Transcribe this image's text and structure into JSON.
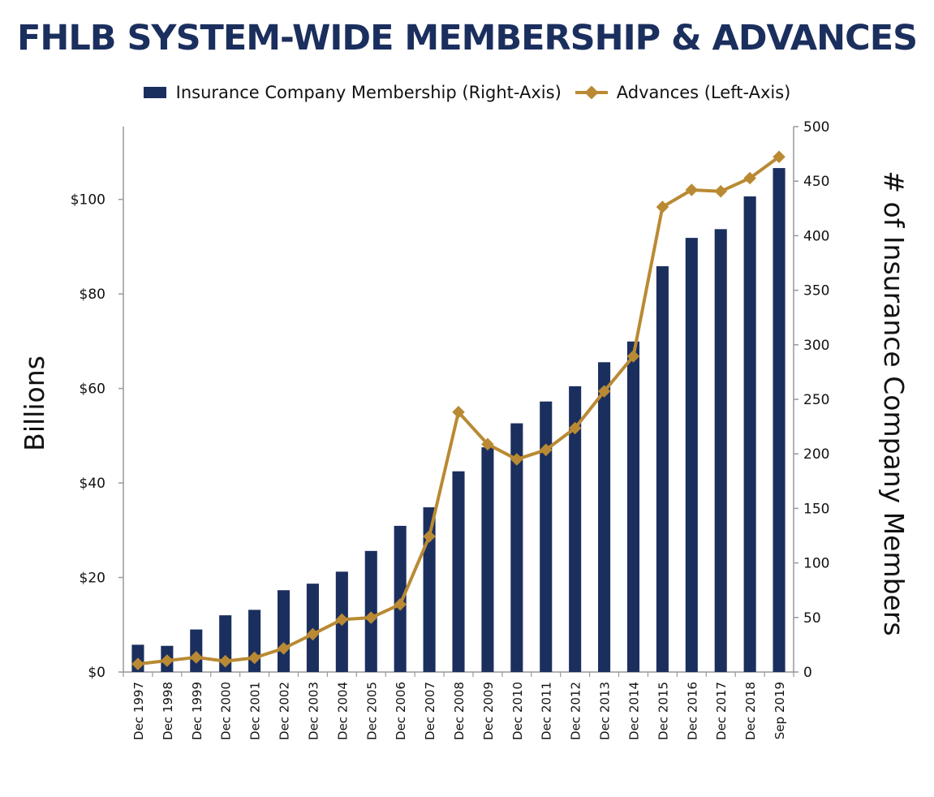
{
  "chart_data": {
    "type": "bar+line",
    "title": "FHLB SYSTEM-WIDE MEMBERSHIP & ADVANCES",
    "categories": [
      "Dec 1997",
      "Dec 1998",
      "Dec 1999",
      "Dec 2000",
      "Dec 2001",
      "Dec 2002",
      "Dec 2003",
      "Dec 2004",
      "Dec 2005",
      "Dec 2006",
      "Dec 2007",
      "Dec 2008",
      "Dec 2009",
      "Dec 2010",
      "Dec 2011",
      "Dec 2012",
      "Dec 2013",
      "Dec 2014",
      "Dec 2015",
      "Dec 2016",
      "Dec 2017",
      "Dec 2018",
      "Sep 2019"
    ],
    "series": [
      {
        "name": "Insurance Company Membership (Right-Axis)",
        "type": "bar",
        "axis": "right",
        "color": "#1b2f5e",
        "values": [
          25,
          24,
          39,
          52,
          57,
          75,
          81,
          92,
          111,
          134,
          151,
          184,
          206,
          228,
          248,
          262,
          284,
          303,
          372,
          398,
          406,
          436,
          462
        ]
      },
      {
        "name": "Advances (Left-Axis)",
        "type": "line",
        "axis": "left",
        "color": "#b98a33",
        "values": [
          1.7,
          2.4,
          3.1,
          2.3,
          3.0,
          5.0,
          8.0,
          11.1,
          11.5,
          14.3,
          28.7,
          55.0,
          48.2,
          45.0,
          47.0,
          51.6,
          59.4,
          66.8,
          98.4,
          102.0,
          101.7,
          104.5,
          109.0
        ]
      }
    ],
    "left_axis": {
      "label": "Billions",
      "min": 0,
      "max": 115.4,
      "ticks": [
        0,
        20,
        40,
        60,
        80,
        100
      ],
      "tick_labels": [
        "$0",
        "$20",
        "$40",
        "$60",
        "$80",
        "$100"
      ]
    },
    "right_axis": {
      "label": "# of Insurance Company Members",
      "min": 0,
      "max": 500,
      "ticks": [
        0,
        50,
        100,
        150,
        200,
        250,
        300,
        350,
        400,
        450,
        500
      ],
      "tick_labels": [
        "0",
        "50",
        "100",
        "150",
        "200",
        "250",
        "300",
        "350",
        "400",
        "450",
        "500"
      ]
    },
    "legend_position": "top",
    "grid": false,
    "colors": {
      "title": "#1b2f5e",
      "bar": "#1b2f5e",
      "line": "#b98a33",
      "axis": "#999999"
    }
  }
}
